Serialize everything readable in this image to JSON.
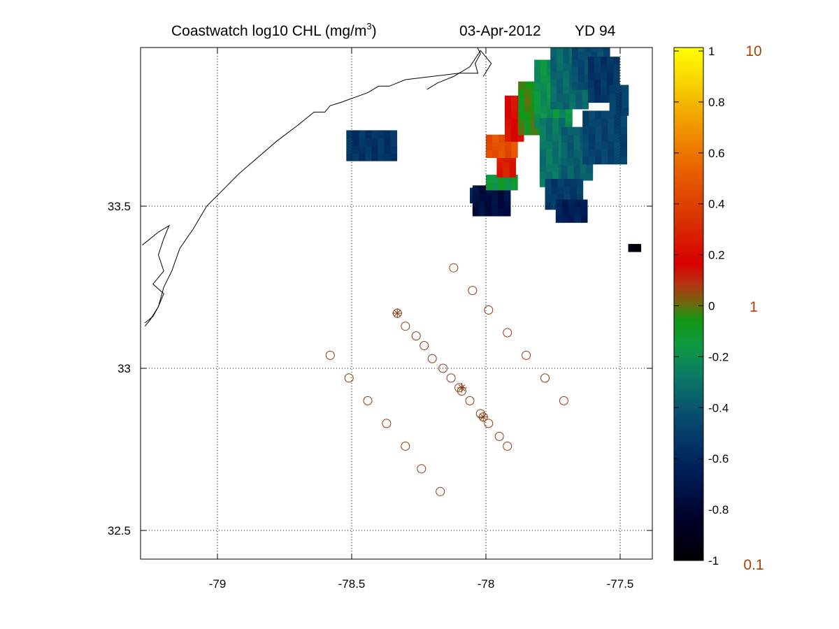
{
  "title": {
    "main": "Coastwatch  log10  CHL (mg/m",
    "superscript": "3",
    "close": ")",
    "date": "03-Apr-2012",
    "yearday": "YD 94"
  },
  "chart_data": {
    "type": "heatmap",
    "map": {
      "xlim": [
        -79.28,
        -77.38
      ],
      "ylim": [
        32.43,
        34.02
      ],
      "xticks": [
        -79,
        -78.5,
        -78,
        -77.5
      ],
      "xtick_labels": [
        "-79",
        "-78.5",
        "-78",
        "-77.5"
      ],
      "yticks": [
        32.5,
        33,
        33.5
      ],
      "ytick_labels": [
        "32.5",
        "33",
        "33.5"
      ],
      "grid": "dotted",
      "coastline": [
        [
          -78.05,
          34.02
        ],
        [
          -78.02,
          33.97
        ],
        [
          -78.04,
          33.94
        ],
        [
          -78.03,
          33.91
        ],
        [
          -78.1,
          33.91
        ],
        [
          -78.2,
          33.9
        ],
        [
          -78.3,
          33.89
        ],
        [
          -78.36,
          33.87
        ],
        [
          -78.4,
          33.87
        ],
        [
          -78.44,
          33.85
        ],
        [
          -78.54,
          33.82
        ],
        [
          -78.58,
          33.81
        ],
        [
          -78.6,
          33.79
        ],
        [
          -78.64,
          33.79
        ],
        [
          -78.7,
          33.75
        ],
        [
          -78.78,
          33.7
        ],
        [
          -78.85,
          33.65
        ],
        [
          -78.92,
          33.6
        ],
        [
          -78.98,
          33.55
        ],
        [
          -79.04,
          33.5
        ],
        [
          -79.09,
          33.43
        ],
        [
          -79.14,
          33.37
        ],
        [
          -79.17,
          33.3
        ],
        [
          -79.2,
          33.25
        ],
        [
          -79.22,
          33.19
        ],
        [
          -79.25,
          33.15
        ],
        [
          -79.27,
          33.13
        ]
      ],
      "inlet": [
        [
          -79.28,
          33.38
        ],
        [
          -79.22,
          33.42
        ],
        [
          -79.18,
          33.44
        ],
        [
          -79.2,
          33.4
        ],
        [
          -79.22,
          33.35
        ],
        [
          -79.2,
          33.3
        ],
        [
          -79.24,
          33.26
        ],
        [
          -79.2,
          33.23
        ],
        [
          -79.22,
          33.19
        ],
        [
          -79.24,
          33.16
        ],
        [
          -79.27,
          33.14
        ]
      ],
      "cape_spit": [
        [
          -78.22,
          33.86
        ],
        [
          -78.18,
          33.88
        ],
        [
          -78.12,
          33.9
        ],
        [
          -78.06,
          33.93
        ],
        [
          -78.02,
          33.98
        ],
        [
          -77.98,
          33.94
        ],
        [
          -78.01,
          33.9
        ]
      ],
      "stations": [
        [
          -78.12,
          33.31
        ],
        [
          -78.05,
          33.24
        ],
        [
          -77.99,
          33.18
        ],
        [
          -77.92,
          33.11
        ],
        [
          -77.85,
          33.04
        ],
        [
          -77.78,
          32.97
        ],
        [
          -77.71,
          32.9
        ],
        [
          -78.33,
          33.17
        ],
        [
          -78.3,
          33.13
        ],
        [
          -78.26,
          33.1
        ],
        [
          -78.23,
          33.07
        ],
        [
          -78.2,
          33.03
        ],
        [
          -78.16,
          33.0
        ],
        [
          -78.13,
          32.97
        ],
        [
          -78.1,
          32.94
        ],
        [
          -78.09,
          32.93
        ],
        [
          -78.06,
          32.9
        ],
        [
          -78.02,
          32.86
        ],
        [
          -78.01,
          32.85
        ],
        [
          -77.99,
          32.83
        ],
        [
          -77.95,
          32.79
        ],
        [
          -77.92,
          32.76
        ],
        [
          -78.58,
          33.04
        ],
        [
          -78.51,
          32.97
        ],
        [
          -78.44,
          32.9
        ],
        [
          -78.37,
          32.83
        ],
        [
          -78.3,
          32.76
        ],
        [
          -78.24,
          32.69
        ],
        [
          -78.17,
          32.62
        ]
      ],
      "marked_stations": [
        [
          -78.33,
          33.17
        ],
        [
          -78.09,
          32.94
        ],
        [
          -78.01,
          32.85
        ]
      ]
    },
    "chlorophyll_patches": [
      {
        "lon": [
          -78.52,
          -78.34
        ],
        "lat": [
          33.64,
          33.72
        ],
        "value": -0.55
      },
      {
        "lon": [
          -78.06,
          -77.98
        ],
        "lat": [
          33.51,
          33.55
        ],
        "value": -0.62
      },
      {
        "lon": [
          -78.05,
          -77.93
        ],
        "lat": [
          33.47,
          33.55
        ],
        "value": -0.75
      },
      {
        "lon": [
          -78.0,
          -77.9
        ],
        "lat": [
          33.55,
          33.59
        ],
        "value": -0.15
      },
      {
        "lon": [
          -77.96,
          -77.9
        ],
        "lat": [
          33.59,
          33.66
        ],
        "value": 0.25
      },
      {
        "lon": [
          -78.0,
          -77.9
        ],
        "lat": [
          33.65,
          33.7
        ],
        "value": 0.45
      },
      {
        "lon": [
          -77.93,
          -77.86
        ],
        "lat": [
          33.7,
          33.84
        ],
        "value": 0.2
      },
      {
        "lon": [
          -77.88,
          -77.8
        ],
        "lat": [
          33.72,
          33.87
        ],
        "value": -0.05
      },
      {
        "lon": [
          -77.82,
          -77.7
        ],
        "lat": [
          33.74,
          33.94
        ],
        "value": -0.2
      },
      {
        "lon": [
          -77.76,
          -77.64
        ],
        "lat": [
          33.8,
          34.0
        ],
        "value": -0.35
      },
      {
        "lon": [
          -77.68,
          -77.54
        ],
        "lat": [
          33.86,
          34.01
        ],
        "value": -0.45
      },
      {
        "lon": [
          -77.62,
          -77.52
        ],
        "lat": [
          33.82,
          33.96
        ],
        "value": -0.55
      },
      {
        "lon": [
          -77.8,
          -77.72
        ],
        "lat": [
          33.56,
          33.76
        ],
        "value": -0.3
      },
      {
        "lon": [
          -77.72,
          -77.62
        ],
        "lat": [
          33.58,
          33.74
        ],
        "value": -0.38
      },
      {
        "lon": [
          -77.78,
          -77.66
        ],
        "lat": [
          33.49,
          33.58
        ],
        "value": -0.52
      },
      {
        "lon": [
          -77.74,
          -77.64
        ],
        "lat": [
          33.45,
          33.5
        ],
        "value": -0.65
      },
      {
        "lon": [
          -77.64,
          -77.48
        ],
        "lat": [
          33.63,
          33.78
        ],
        "value": -0.48
      },
      {
        "lon": [
          -77.54,
          -77.48
        ],
        "lat": [
          33.78,
          33.86
        ],
        "value": -0.5
      },
      {
        "lon": [
          -77.47,
          -77.44
        ],
        "lat": [
          33.36,
          33.38
        ],
        "value": -0.95
      }
    ],
    "colorbar": {
      "range": [
        -1,
        1
      ],
      "ticks": [
        "1",
        "0.8",
        "0.6",
        "0.4",
        "0.2",
        "0",
        "-0.2",
        "-0.4",
        "-0.6",
        "-0.8",
        "-1"
      ],
      "right_labels": [
        "10",
        "1",
        "0.1"
      ],
      "right_label_color": "#b04000"
    }
  },
  "colors": {
    "station_marker": "#8b3a0f",
    "coastline": "#000000",
    "grid": "#000000"
  }
}
